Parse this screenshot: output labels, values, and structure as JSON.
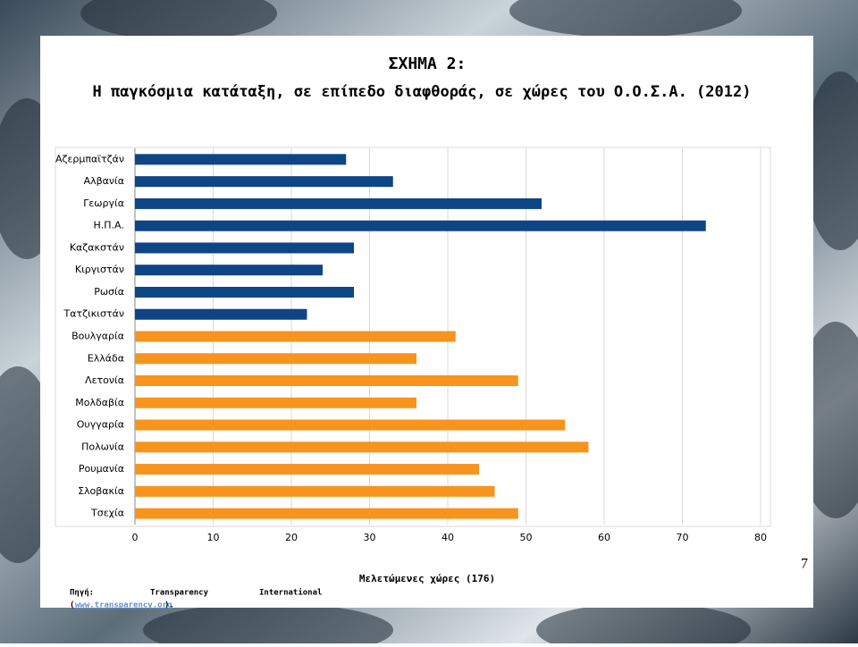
{
  "chart_data": {
    "type": "bar",
    "orientation": "horizontal",
    "title": "ΣΧΗΜΑ 2:",
    "subtitle": "Η παγκόσμια κατάταξη, σε επίπεδο διαφθοράς, σε χώρες του Ο.Ο.Σ.Α. (2012)",
    "x_label": "Μελετώμενες χώρες (176)",
    "categories": [
      "Αζερμπαϊτζάν",
      "Αλβανία",
      "Γεωργία",
      "Η.Π.Α.",
      "Καζακστάν",
      "Κιργιστάν",
      "Ρωσία",
      "Τατζικιστάν",
      "Βουλγαρία",
      "Ελλάδα",
      "Λετονία",
      "Μολδαβία",
      "Ουγγαρία",
      "Πολωνία",
      "Ρουμανία",
      "Σλοβακία",
      "Τσεχία"
    ],
    "values": [
      27,
      33,
      52,
      73,
      28,
      24,
      28,
      22,
      41,
      36,
      49,
      36,
      55,
      58,
      44,
      46,
      49
    ],
    "colors": [
      "#0d4585",
      "#0d4585",
      "#0d4585",
      "#0d4585",
      "#0d4585",
      "#0d4585",
      "#0d4585",
      "#0d4585",
      "#f7941d",
      "#f7941d",
      "#f7941d",
      "#f7941d",
      "#f7941d",
      "#f7941d",
      "#f7941d",
      "#f7941d",
      "#f7941d"
    ],
    "xlim": [
      0,
      80
    ],
    "xticks": [
      0,
      10,
      20,
      30,
      40,
      50,
      60,
      70,
      80
    ],
    "grid": true
  },
  "page_number": "7",
  "source": {
    "prefix": "Πηγή:",
    "words": [
      "Transparency",
      "International"
    ],
    "open": "(",
    "link": "www.transparency.org",
    "close": ")."
  }
}
